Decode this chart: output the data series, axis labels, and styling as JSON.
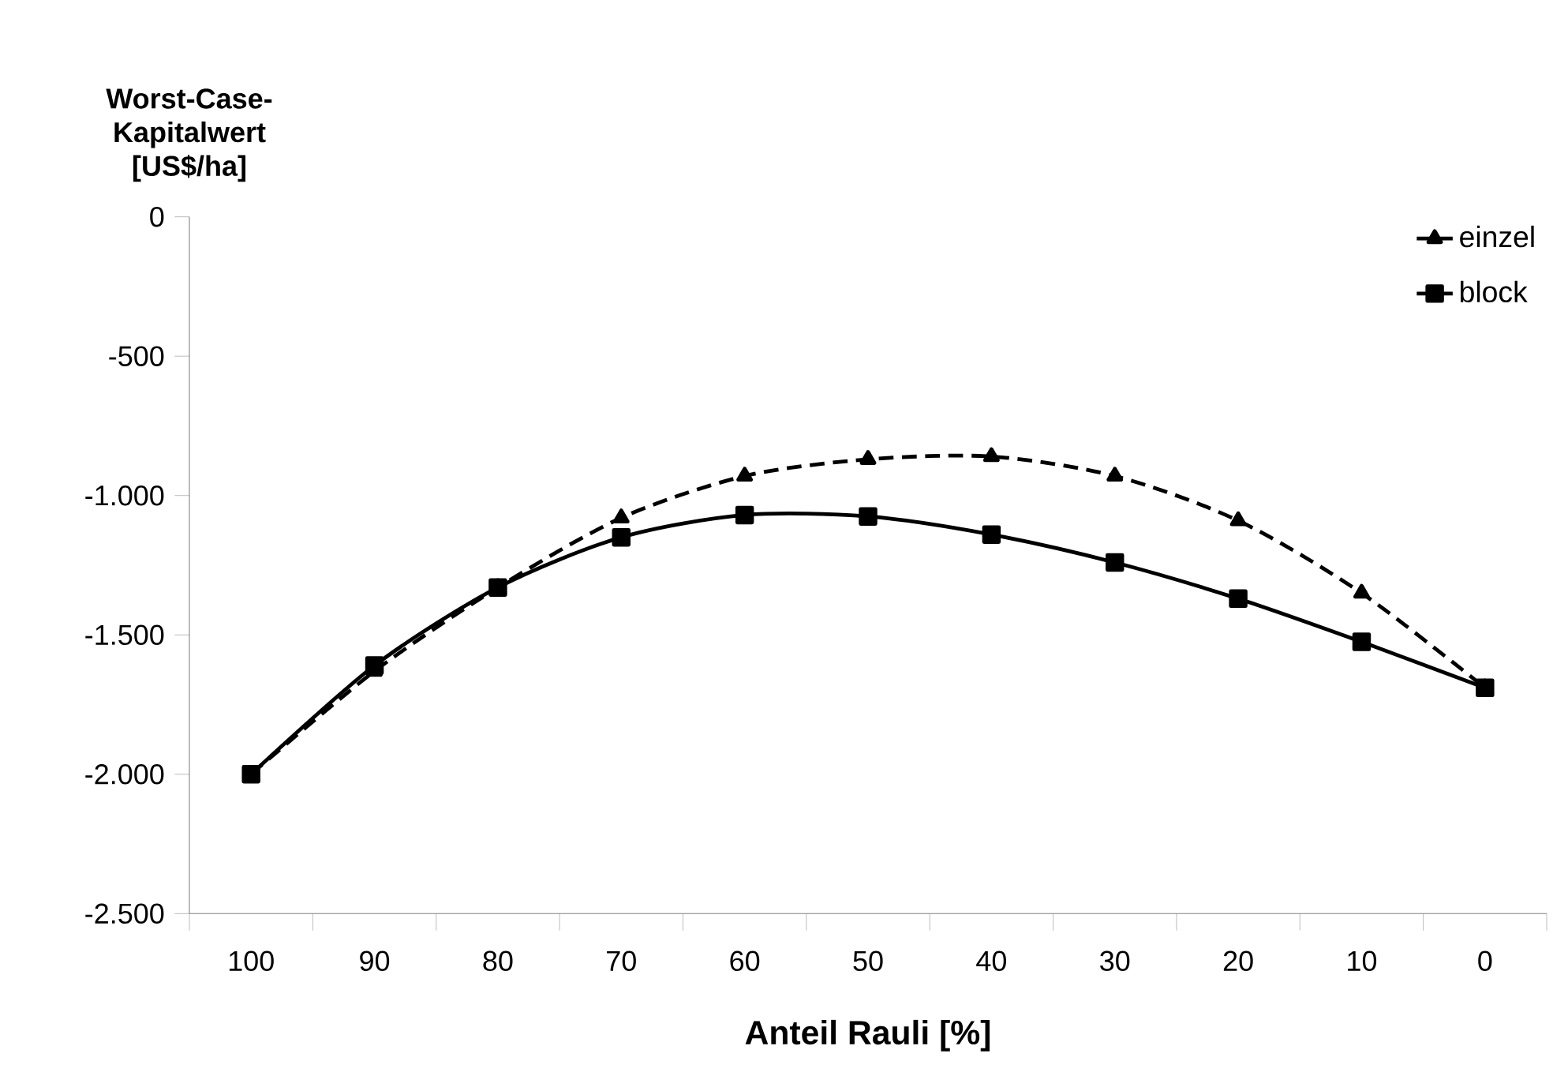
{
  "chart_data": {
    "type": "line",
    "xlabel": "Anteil Rauli [%]",
    "ylabel": "Worst-Case-Kapitalwert [US$/ha]",
    "categories": [
      "100",
      "90",
      "80",
      "70",
      "60",
      "50",
      "40",
      "30",
      "20",
      "10",
      "0"
    ],
    "series": [
      {
        "name": "einzel",
        "color": "#000000",
        "marker": "triangle",
        "line_style": "dashed",
        "values": [
          -2000,
          -1630,
          -1330,
          -1080,
          -930,
          -870,
          -860,
          -930,
          -1090,
          -1350,
          -1690
        ]
      },
      {
        "name": "block",
        "color": "#000000",
        "marker": "square",
        "line_style": "solid",
        "values": [
          -2000,
          -1610,
          -1330,
          -1150,
          -1070,
          -1075,
          -1140,
          -1240,
          -1370,
          -1525,
          -1690
        ]
      }
    ],
    "ylim": [
      -2500,
      0
    ],
    "yticks": [
      {
        "value": -2500,
        "label": "-2.500"
      },
      {
        "value": -2000,
        "label": "-2.000"
      },
      {
        "value": -1500,
        "label": "-1.500"
      },
      {
        "value": -1000,
        "label": "-1.000"
      },
      {
        "value": -500,
        "label": "-500"
      },
      {
        "value": 0,
        "label": "0"
      }
    ],
    "legend": "top right",
    "grid": false
  }
}
